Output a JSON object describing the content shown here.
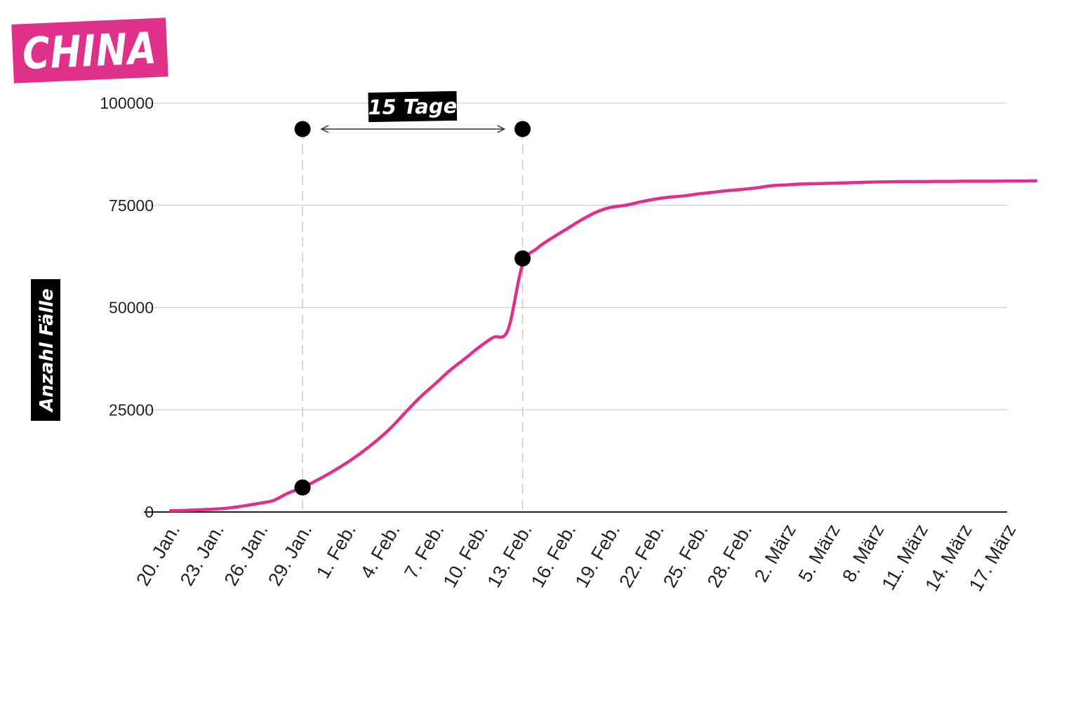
{
  "title": "CHINA",
  "colors": {
    "accent": "#e0318a",
    "line": "#e0318a",
    "marker": "#000000",
    "grid": "#d0d0d0"
  },
  "chart_data": {
    "type": "line",
    "title": "CHINA",
    "ylabel": "Anzahl Fälle",
    "xlabel": "",
    "ylim": [
      0,
      100000
    ],
    "grid": true,
    "yticks": [
      0,
      25000,
      50000,
      75000,
      100000
    ],
    "xticks": [
      "20. Jan.",
      "23. Jan.",
      "26. Jan.",
      "29. Jan.",
      "1. Feb.",
      "4. Feb.",
      "7. Feb.",
      "10. Feb.",
      "13. Feb.",
      "16. Feb.",
      "19. Feb.",
      "22. Feb.",
      "25. Feb.",
      "28. Feb.",
      "2. März",
      "5. März",
      "8. März",
      "11. März",
      "14. März",
      "17. März"
    ],
    "series": [
      {
        "values": [
          [
            "2020-01-20",
            300
          ],
          [
            "2020-01-21",
            400
          ],
          [
            "2020-01-22",
            550
          ],
          [
            "2020-01-23",
            700
          ],
          [
            "2020-01-24",
            1000
          ],
          [
            "2020-01-25",
            1500
          ],
          [
            "2020-01-26",
            2100
          ],
          [
            "2020-01-27",
            2800
          ],
          [
            "2020-01-28",
            4600
          ],
          [
            "2020-01-29",
            6000
          ],
          [
            "2020-01-30",
            7800
          ],
          [
            "2020-01-31",
            9800
          ],
          [
            "2020-02-01",
            12000
          ],
          [
            "2020-02-02",
            14500
          ],
          [
            "2020-02-03",
            17300
          ],
          [
            "2020-02-04",
            20500
          ],
          [
            "2020-02-05",
            24300
          ],
          [
            "2020-02-06",
            28000
          ],
          [
            "2020-02-07",
            31200
          ],
          [
            "2020-02-08",
            34500
          ],
          [
            "2020-02-09",
            37300
          ],
          [
            "2020-02-10",
            40200
          ],
          [
            "2020-02-11",
            42700
          ],
          [
            "2020-02-12",
            44500
          ],
          [
            "2020-02-13",
            60500
          ],
          [
            "2020-02-14",
            64500
          ],
          [
            "2020-02-15",
            67000
          ],
          [
            "2020-02-16",
            69200
          ],
          [
            "2020-02-17",
            71400
          ],
          [
            "2020-02-18",
            73300
          ],
          [
            "2020-02-19",
            74500
          ],
          [
            "2020-02-20",
            75000
          ],
          [
            "2020-02-21",
            75800
          ],
          [
            "2020-02-22",
            76500
          ],
          [
            "2020-02-23",
            77000
          ],
          [
            "2020-02-24",
            77300
          ],
          [
            "2020-02-25",
            77800
          ],
          [
            "2020-02-26",
            78200
          ],
          [
            "2020-02-27",
            78600
          ],
          [
            "2020-02-28",
            78900
          ],
          [
            "2020-02-29",
            79300
          ],
          [
            "2020-03-01",
            79800
          ],
          [
            "2020-03-02",
            80000
          ],
          [
            "2020-03-03",
            80200
          ],
          [
            "2020-03-04",
            80300
          ],
          [
            "2020-03-05",
            80400
          ],
          [
            "2020-03-06",
            80500
          ],
          [
            "2020-03-07",
            80600
          ],
          [
            "2020-03-08",
            80700
          ],
          [
            "2020-03-09",
            80750
          ],
          [
            "2020-03-10",
            80800
          ],
          [
            "2020-03-11",
            80800
          ],
          [
            "2020-03-12",
            80850
          ],
          [
            "2020-03-13",
            80850
          ],
          [
            "2020-03-14",
            80900
          ],
          [
            "2020-03-15",
            80900
          ],
          [
            "2020-03-16",
            80900
          ],
          [
            "2020-03-17",
            80950
          ],
          [
            "2020-03-18",
            80950
          ],
          [
            "2020-03-19",
            81000
          ]
        ]
      }
    ],
    "annotations": [
      {
        "label": "15 Tage",
        "from": "2020-01-29",
        "to": "2020-02-13",
        "points": [
          [
            "2020-01-29",
            6000
          ],
          [
            "2020-02-13",
            62000
          ]
        ]
      }
    ]
  }
}
